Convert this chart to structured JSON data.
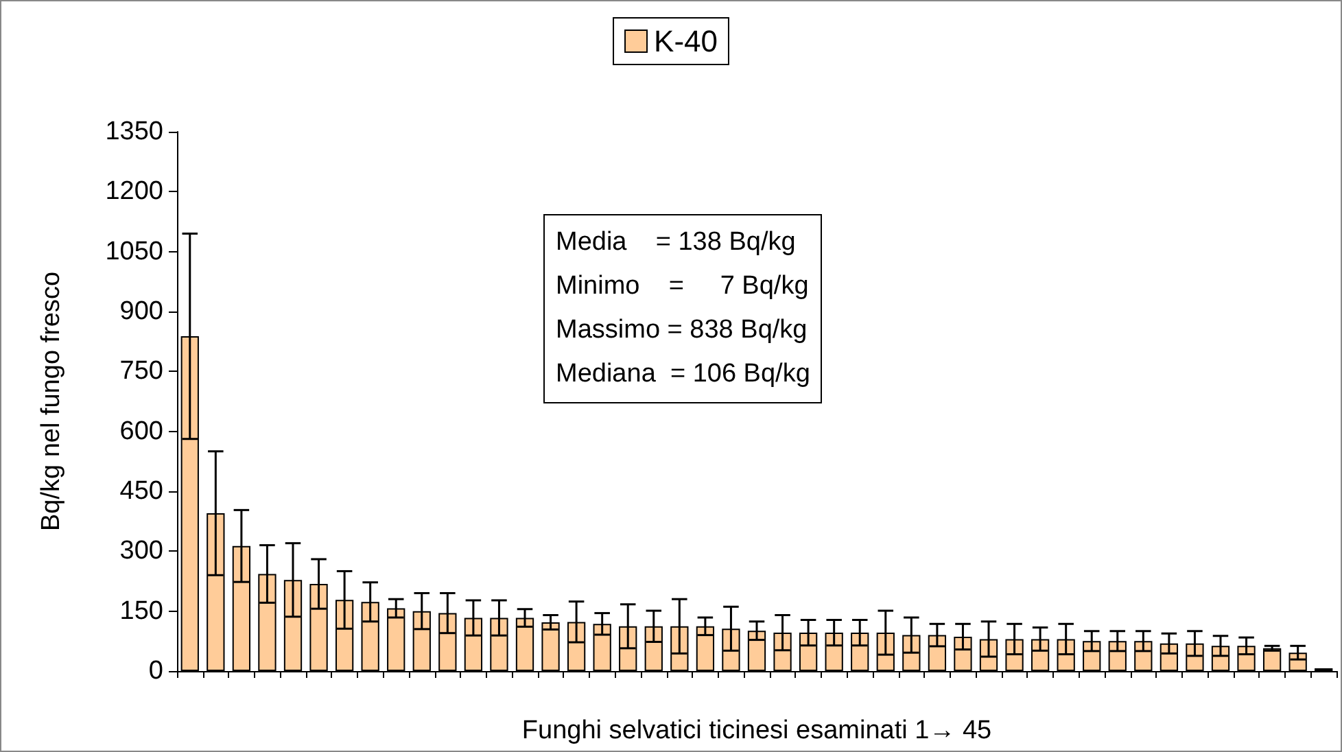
{
  "chart_data": {
    "type": "bar",
    "xlabel": "Funghi selvatici ticinesi esaminati 1→ 45",
    "ylabel": "Bq/kg nel fungo fresco",
    "categories": [
      null,
      null,
      null,
      null,
      null,
      null,
      null,
      null,
      null,
      null,
      null,
      null,
      null,
      null,
      null,
      null,
      null,
      null,
      null,
      null,
      null,
      null,
      null,
      null,
      null,
      null,
      null,
      null,
      null,
      null,
      null,
      null,
      null,
      null,
      null,
      null,
      null,
      null,
      null,
      null,
      null,
      null,
      null,
      null,
      null
    ],
    "series": [
      {
        "name": "K-40",
        "color": "#ffcc99",
        "values": [
          838,
          395,
          313,
          243,
          228,
          218,
          178,
          173,
          157,
          150,
          145,
          133,
          133,
          133,
          122,
          123,
          118,
          112,
          112,
          112,
          112,
          106,
          101,
          96,
          96,
          96,
          96,
          96,
          90,
          90,
          86,
          80,
          80,
          80,
          80,
          75,
          75,
          75,
          69,
          69,
          63,
          63,
          57,
          46,
          7
        ],
        "errors": [
          257,
          155,
          90,
          72,
          92,
          62,
          72,
          49,
          23,
          45,
          50,
          44,
          44,
          22,
          18,
          51,
          27,
          55,
          39,
          68,
          22,
          55,
          23,
          44,
          32,
          32,
          32,
          55,
          44,
          28,
          32,
          44,
          38,
          29,
          38,
          25,
          25,
          25,
          25,
          31,
          25,
          21,
          6,
          17,
          null
        ]
      }
    ],
    "ylim": [
      0,
      1350
    ],
    "yticks": [
      0,
      150,
      300,
      450,
      600,
      750,
      900,
      1050,
      1200,
      1350
    ],
    "grid": false,
    "legend": "top",
    "annotations": [
      "Media    = 138 Bq/kg",
      "Minimo    =     7 Bq/kg",
      "Massimo = 838 Bq/kg",
      "Mediana  = 106 Bq/kg"
    ]
  }
}
